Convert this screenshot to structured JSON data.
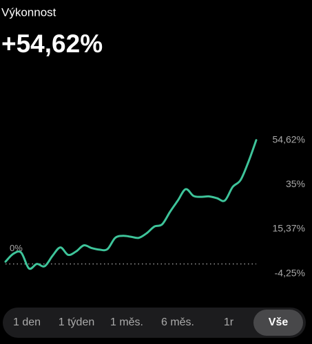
{
  "header": {
    "title": "Výkonnost",
    "value": "+54,62%"
  },
  "chart_data": {
    "type": "line",
    "color": "#3ec49a",
    "values": [
      1,
      4.5,
      5,
      -2,
      0,
      -1,
      3.6,
      7.3,
      4,
      5.5,
      8.2,
      7,
      6.3,
      6.5,
      11.5,
      12.4,
      12,
      11.5,
      13.5,
      16.5,
      17.5,
      23,
      28,
      33,
      30,
      29.6,
      29.8,
      29,
      28,
      34,
      37,
      45,
      54.62
    ],
    "ylim": [
      -8,
      60
    ],
    "yticks": [
      {
        "value": 54.62,
        "label": "54,62%"
      },
      {
        "value": 35,
        "label": "35%"
      },
      {
        "value": 15.37,
        "label": "15,37%"
      },
      {
        "value": -4.25,
        "label": "-4,25%"
      }
    ],
    "baseline": {
      "value": 0,
      "label": "0%"
    }
  },
  "tabs": [
    "1 den",
    "1 týden",
    "1 měs.",
    "6 měs.",
    "1r",
    "Vše"
  ],
  "selected_tab": "Vše"
}
